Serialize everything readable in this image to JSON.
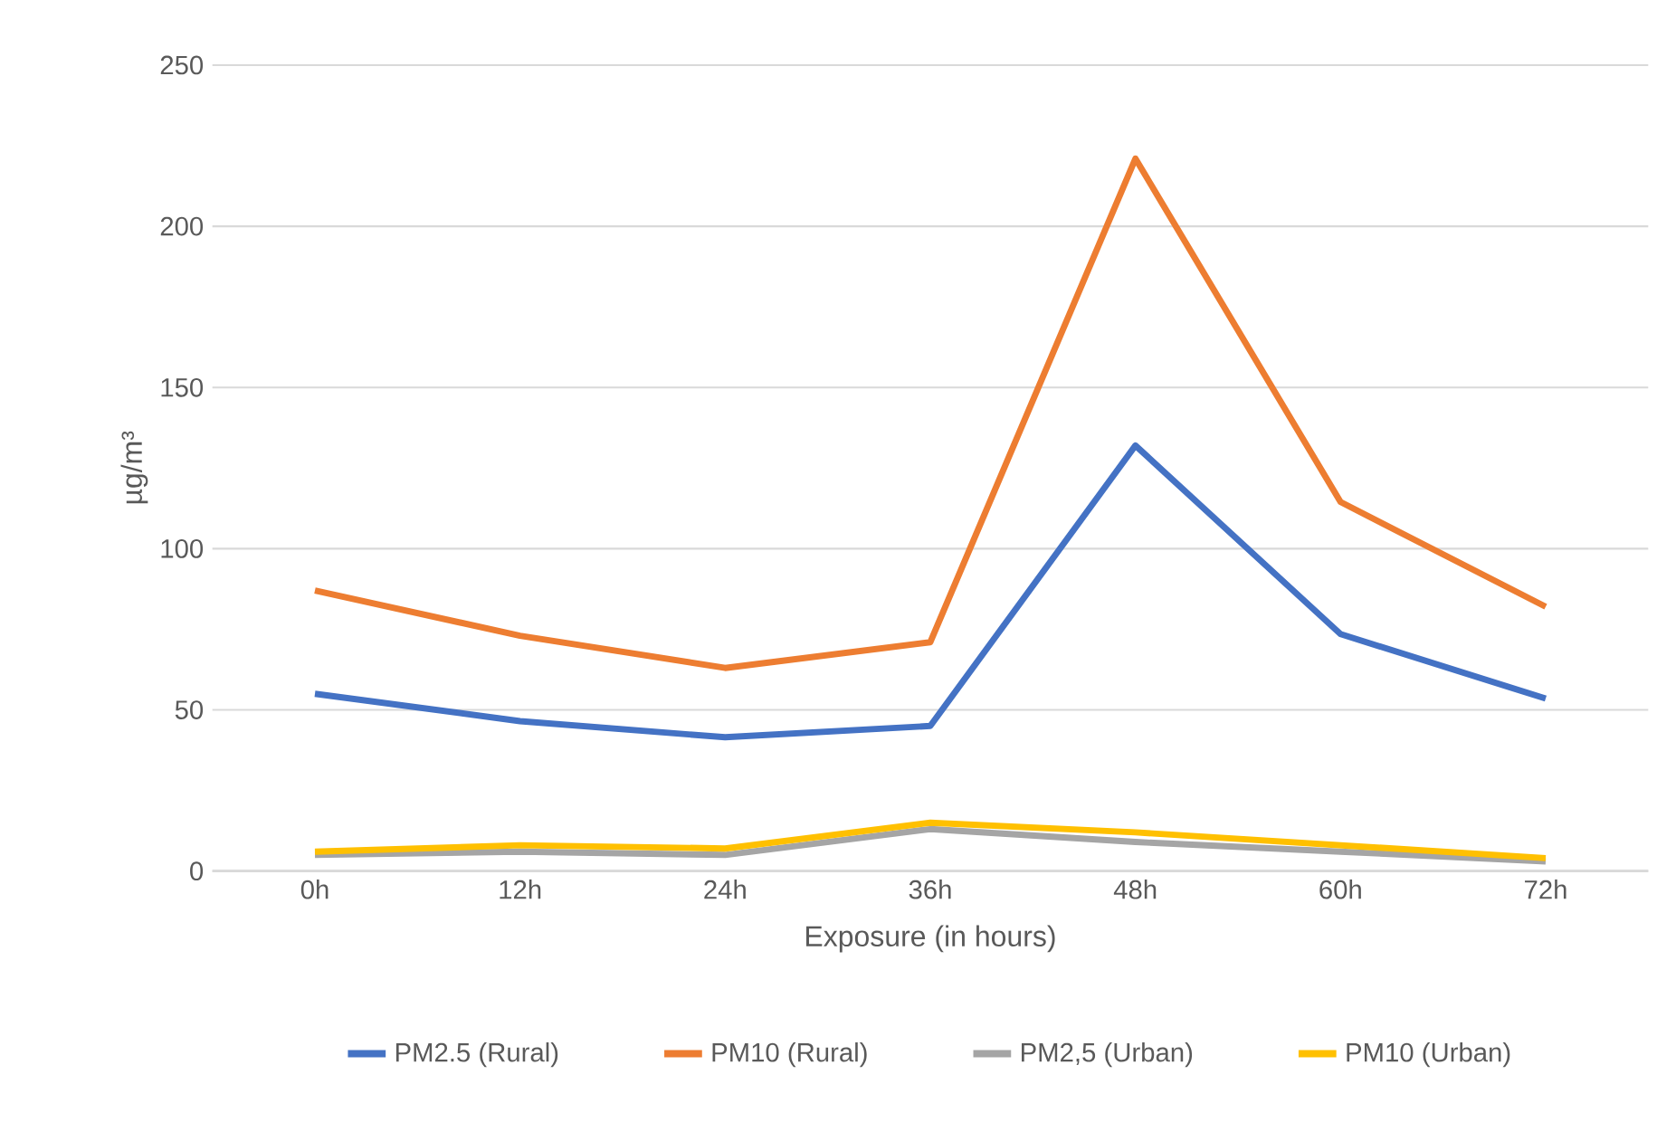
{
  "chart_data": {
    "type": "line",
    "xlabel": "Exposure (in hours)",
    "ylabel": "µg/m³",
    "categories": [
      "0h",
      "12h",
      "24h",
      "36h",
      "48h",
      "60h",
      "72h"
    ],
    "series": [
      {
        "name": "PM2.5 (Rural)",
        "color": "#4472c4",
        "values": [
          55,
          46.5,
          41.5,
          45,
          132,
          73.5,
          53.5
        ]
      },
      {
        "name": "PM10 (Rural)",
        "color": "#ed7d31",
        "values": [
          87,
          73,
          63,
          71,
          221,
          114.5,
          82
        ]
      },
      {
        "name": "PM2,5 (Urban)",
        "color": "#a5a5a5",
        "values": [
          5,
          6,
          5,
          13,
          9,
          6,
          3
        ]
      },
      {
        "name": "PM10 (Urban)",
        "color": "#ffc000",
        "values": [
          6,
          8,
          7,
          15,
          12,
          8,
          4
        ]
      }
    ],
    "ylim": [
      0,
      250
    ],
    "yticks": [
      0,
      50,
      100,
      150,
      200,
      250
    ],
    "grid": "y",
    "legend": "bottom",
    "marker": "none",
    "line_style": "solid"
  }
}
